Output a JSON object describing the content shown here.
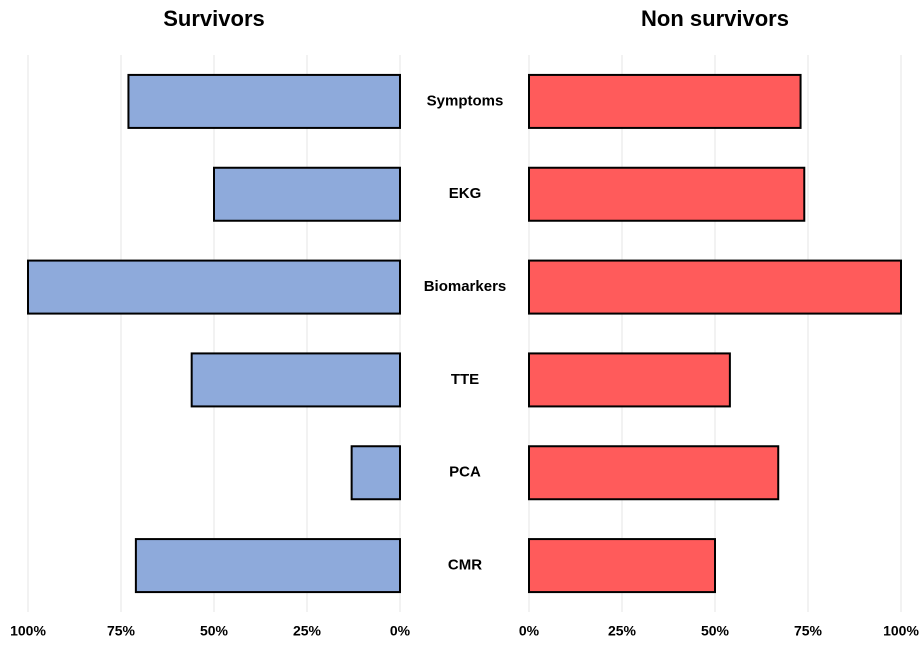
{
  "chart_data": {
    "type": "butterfly",
    "categories": [
      "Symptoms",
      "EKG",
      "Biomarkers",
      "TTE",
      "PCA",
      "CMR"
    ],
    "grid": true,
    "series": [
      {
        "name": "Survivors",
        "color": "#8eaadb",
        "values": [
          73,
          50,
          100,
          56,
          13,
          71
        ],
        "xlim": [
          100,
          0
        ],
        "xticks": [
          {
            "value": 100,
            "label": "100%"
          },
          {
            "value": 75,
            "label": "75%"
          },
          {
            "value": 50,
            "label": "50%"
          },
          {
            "value": 25,
            "label": "25%"
          },
          {
            "value": 0,
            "label": "0%"
          }
        ]
      },
      {
        "name": "Non survivors",
        "color": "#ff5b5b",
        "values": [
          73,
          74,
          100,
          54,
          67,
          50
        ],
        "xlim": [
          0,
          100
        ],
        "xticks": [
          {
            "value": 0,
            "label": "0%"
          },
          {
            "value": 25,
            "label": "25%"
          },
          {
            "value": 50,
            "label": "50%"
          },
          {
            "value": 75,
            "label": "75%"
          },
          {
            "value": 100,
            "label": "100%"
          }
        ]
      }
    ]
  }
}
